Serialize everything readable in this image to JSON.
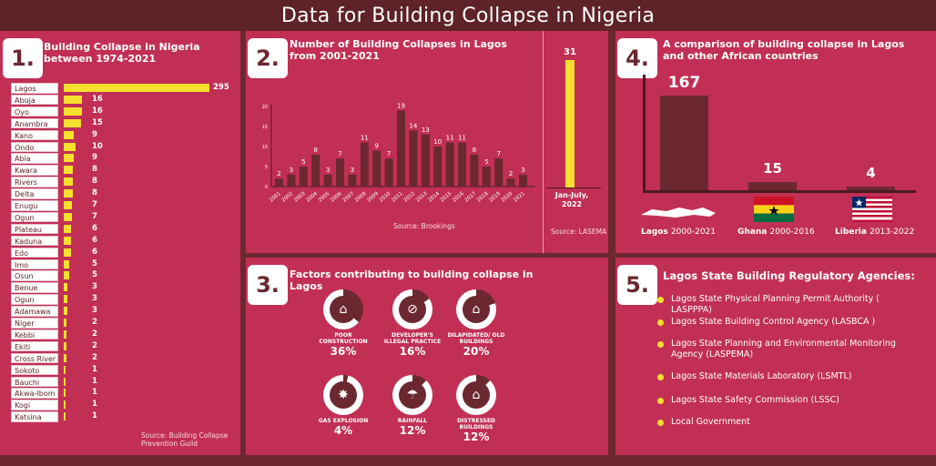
{
  "title": "Data for Building Collapse in Nigeria",
  "colors": {
    "panel": "#c22f55",
    "bar_dark": "#6b2830",
    "highlight": "#f6df2e",
    "background": "#6b2830"
  },
  "section1": {
    "number": "1.",
    "title": "Building Collapse in Nigeria between 1974-2021",
    "source": "Source: Building Collapse Prevention Guild"
  },
  "section2": {
    "number": "2.",
    "title": "Number of Building Collapses in Lagos from 2001-2021",
    "source": "Source: Brookings",
    "source2": "Source: LASEMA",
    "extra_label": "Jan-July, 2022",
    "extra_value": "31"
  },
  "section3": {
    "number": "3.",
    "title": "Factors contributing to building collapse in Lagos",
    "factors": [
      {
        "label": "POOR CONSTRUCTION",
        "pct": "36%",
        "icon": "house-icon"
      },
      {
        "label": "DEVELOPER'S ILLEGAL PRACTICE",
        "pct": "16%",
        "icon": "no-entry-icon"
      },
      {
        "label": "DILAPIDATED/ OLD BUILDINGS",
        "pct": "20%",
        "icon": "old-house-icon"
      },
      {
        "label": "GAS EXPLOSION",
        "pct": "4%",
        "icon": "explosion-icon"
      },
      {
        "label": "RAINFALL",
        "pct": "12%",
        "icon": "rain-icon"
      },
      {
        "label": "DISTRESSED BUILDINGS",
        "pct": "12%",
        "icon": "distressed-house-icon"
      }
    ]
  },
  "section4": {
    "number": "4.",
    "title": "A comparison of building collapse in Lagos and other African countries",
    "labels": [
      {
        "name": "Lagos",
        "period": "2000-2021"
      },
      {
        "name": "Ghana",
        "period": "2000-2016"
      },
      {
        "name": "Liberia",
        "period": "2013-2022"
      }
    ]
  },
  "section5": {
    "number": "5.",
    "title": "Lagos State Building Regulatory Agencies:",
    "agencies": [
      "Lagos State Physical Planning Permit Authority ( LASPPPA)",
      "Lagos State Building Control Agency (LASBCA )",
      "Lagos State Planning and Environmental Monitoring Agency (LASPEMA)",
      "Lagos State Materials Laboratory (LSMTL)",
      "Lagos State Safety Commission (LSSC)",
      "Local Government"
    ]
  },
  "chart_data": [
    {
      "type": "bar",
      "title": "Building Collapse in Nigeria between 1974-2021",
      "categories": [
        "Lagos",
        "Abuja",
        "Oyo",
        "Anambra",
        "Kano",
        "Ondo",
        "Abia",
        "Kwara",
        "Rivers",
        "Delta",
        "Enugu",
        "Ogun",
        "Plateau",
        "Kaduna",
        "Edo",
        "Imo",
        "Osun",
        "Benue",
        "Ogun",
        "Adamawa",
        "Niger",
        "Kebbi",
        "Ekiti",
        "Cross River",
        "Sokoto",
        "Bauchi",
        "Akwa-Ibom",
        "Kogi",
        "Katsina"
      ],
      "values": [
        295,
        16,
        16,
        15,
        9,
        10,
        9,
        8,
        8,
        8,
        7,
        7,
        6,
        6,
        6,
        5,
        5,
        3,
        3,
        3,
        2,
        2,
        2,
        2,
        1,
        1,
        1,
        1,
        1
      ],
      "orientation": "horizontal"
    },
    {
      "type": "bar",
      "title": "Number of Building Collapses in Lagos from 2001-2021",
      "categories": [
        "2001",
        "2002",
        "2003",
        "2004",
        "2005",
        "2006",
        "2007",
        "2008",
        "2009",
        "2010",
        "2011",
        "2012",
        "2013",
        "2014",
        "2015",
        "2016",
        "2017",
        "2018",
        "2019",
        "2020",
        "2021"
      ],
      "values": [
        2,
        3,
        5,
        8,
        3,
        7,
        3,
        11,
        9,
        7,
        19,
        14,
        13,
        10,
        11,
        11,
        8,
        5,
        7,
        2,
        3
      ],
      "y_ticks": [
        "20",
        "15",
        "10",
        "5",
        "0"
      ],
      "ylim": [
        0,
        20
      ]
    },
    {
      "type": "bar",
      "title": "A comparison of building collapse in Lagos and other African countries",
      "categories": [
        "Lagos 2000-2021",
        "Ghana 2000-2016",
        "Liberia 2013-2022"
      ],
      "values": [
        167,
        15,
        4
      ]
    }
  ]
}
